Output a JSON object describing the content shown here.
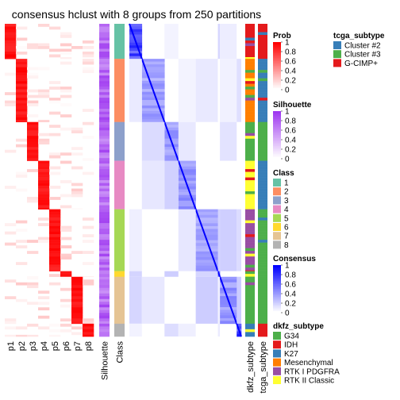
{
  "title": "consensus hclust with 8 groups from 250 partitions",
  "chart_data": {
    "type": "heatmap",
    "title": "consensus hclust with 8 groups from 250 partitions",
    "n_groups": 8,
    "n_partitions": 250,
    "column_labels": [
      "p1",
      "p2",
      "p3",
      "p4",
      "p5",
      "p6",
      "p7",
      "p8",
      "Silhouette",
      "Class",
      "dkfz_subtype",
      "tcga_subtype"
    ],
    "membership_columns": [
      "p1",
      "p2",
      "p3",
      "p4",
      "p5",
      "p6",
      "p7",
      "p8"
    ],
    "class_order": [
      1,
      2,
      3,
      4,
      5,
      6,
      7,
      8
    ],
    "class_row_fractions": [
      0.112,
      0.202,
      0.124,
      0.155,
      0.198,
      0.018,
      0.15,
      0.041
    ],
    "legends": {
      "prob": {
        "title": "Prob",
        "ticks": [
          "1",
          "0.8",
          "0.6",
          "0.4",
          "0.2",
          "0"
        ],
        "low": "#FFFFFF",
        "high": "#FF0000"
      },
      "silhouette": {
        "title": "Silhouette",
        "ticks": [
          "1",
          "0.8",
          "0.6",
          "0.4",
          "0.2",
          "0"
        ],
        "low": "#FFFFFF",
        "high": "#9E37F0"
      },
      "class": {
        "title": "Class",
        "labels": [
          "1",
          "2",
          "3",
          "4",
          "5",
          "6",
          "7",
          "8"
        ],
        "colors": [
          "#66C2A5",
          "#FC8D62",
          "#8DA0CB",
          "#E78AC3",
          "#A6D854",
          "#FFD92F",
          "#E5C494",
          "#B3B3B3"
        ]
      },
      "consensus": {
        "title": "Consensus",
        "ticks": [
          "1",
          "0.8",
          "0.6",
          "0.4",
          "0.2",
          "0"
        ],
        "low": "#FFFFFF",
        "high": "#0000FF"
      },
      "dkfz_subtype": {
        "title": "dkfz_subtype",
        "labels": [
          "G34",
          "IDH",
          "K27",
          "Mesenchymal",
          "RTK I PDGFRA",
          "RTK II Classic"
        ],
        "colors": [
          "#4DAF4A",
          "#E41A1C",
          "#377EB8",
          "#FF7F00",
          "#984EA3",
          "#FFFF33"
        ]
      },
      "tcga_subtype": {
        "title": "tcga_subtype",
        "labels": [
          "Cluster #2",
          "Cluster #3",
          "G-CIMP+"
        ],
        "colors": [
          "#377EB8",
          "#4DAF4A",
          "#E41A1C"
        ]
      }
    }
  }
}
